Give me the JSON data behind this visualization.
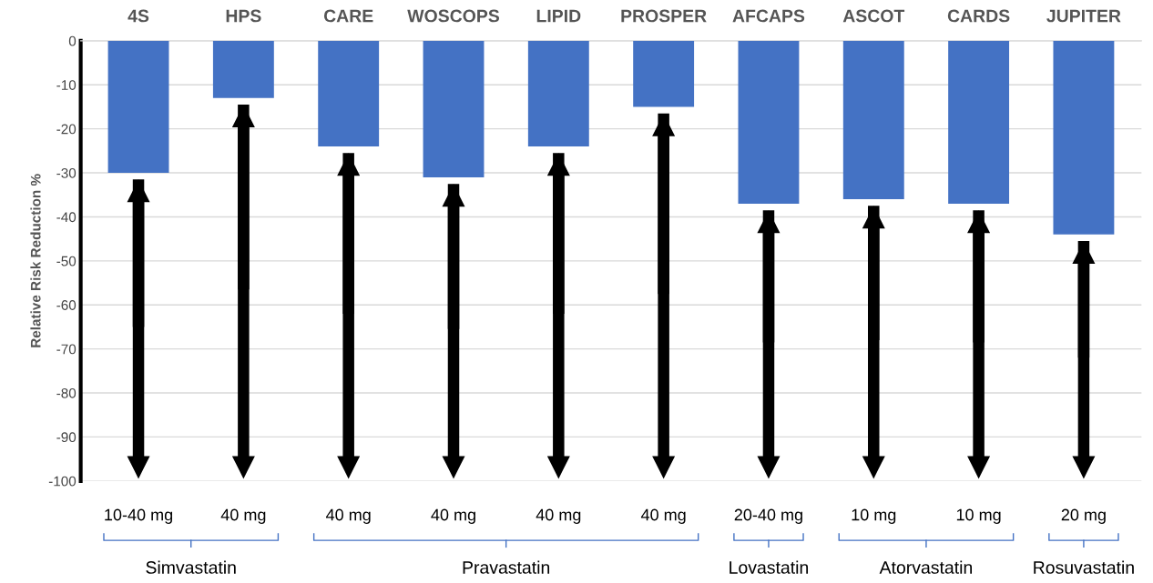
{
  "chart_data": {
    "type": "bar",
    "ylabel": "Relative Risk Reduction %",
    "categories": [
      "4S",
      "HPS",
      "CARE",
      "WOSCOPS",
      "LIPID",
      "PROSPER",
      "AFCAPS",
      "ASCOT",
      "CARDS",
      "JUPITER"
    ],
    "values": [
      -30,
      -13,
      -24,
      -31,
      -24,
      -15,
      -37,
      -36,
      -37,
      -44
    ],
    "color": "#4472c4",
    "ylim": [
      -100,
      0
    ],
    "yticks": [
      0,
      -10,
      -20,
      -30,
      -40,
      -50,
      -60,
      -70,
      -80,
      -90,
      -100
    ],
    "grid": "y",
    "annotations": [
      "10-40 mg",
      "40 mg",
      "40 mg",
      "40 mg",
      "40 mg",
      "40 mg",
      "20-40 mg",
      "10 mg",
      "10 mg",
      "20 mg",
      "Simvastatin",
      "Pravastatin",
      "Lovastatin",
      "Atorvastatin",
      "Rosuvastatin"
    ]
  }
}
